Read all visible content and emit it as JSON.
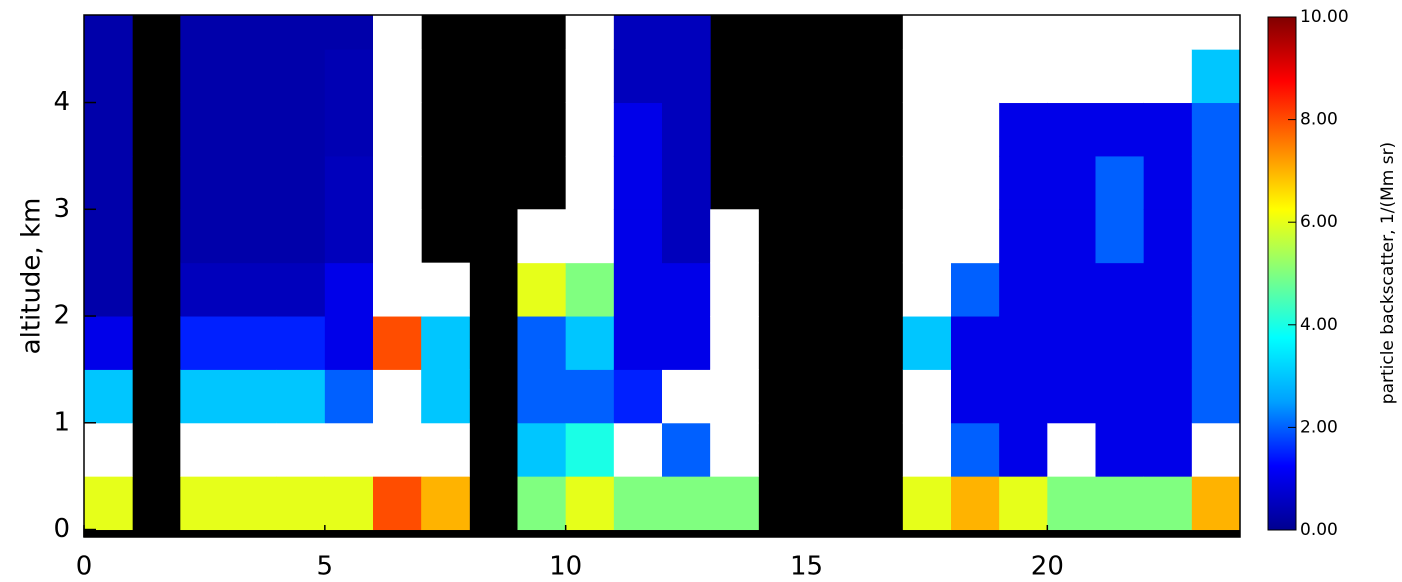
{
  "chart_data": {
    "type": "heatmap",
    "xlabel": null,
    "ylabel": "altitude, km",
    "colorbar_label": "particle backscatter, 1/(Mm sr)",
    "xlim": [
      0,
      24
    ],
    "xticks": [
      0,
      5,
      10,
      15,
      20
    ],
    "ylim": [
      -0.07,
      4.82
    ],
    "yticks": [
      0,
      1,
      2,
      3,
      4
    ],
    "x_bins": [
      0,
      1,
      2,
      3,
      4,
      5,
      6,
      7,
      8,
      9,
      10,
      11,
      12,
      13,
      14,
      15,
      16,
      17,
      18,
      19,
      20,
      21,
      22,
      23,
      24
    ],
    "y_bins": [
      0,
      0.5,
      1,
      1.5,
      2,
      2.5,
      3,
      3.5,
      4,
      4.5,
      4.82
    ],
    "clim": [
      0,
      10
    ],
    "cticks": [
      {
        "value": 0,
        "label": "0.00"
      },
      {
        "value": 2,
        "label": "2.00"
      },
      {
        "value": 4,
        "label": "4.00"
      },
      {
        "value": 6,
        "label": "6.00"
      },
      {
        "value": 8,
        "label": "8.00"
      },
      {
        "value": 10,
        "label": "10.00"
      }
    ],
    "colormap": [
      "#00008f",
      "#0000ff",
      "#00a0ff",
      "#00ffff",
      "#80ff80",
      "#ffff00",
      "#ff8000",
      "#ff0000",
      "#800000"
    ],
    "over_color": "#ffffff",
    "missing_color": "#000000",
    "values": [
      [
        6,
        11,
        3,
        1,
        0.3,
        0.3,
        0.3,
        0.3,
        0.3,
        0.3
      ],
      [
        null,
        null,
        null,
        null,
        null,
        null,
        null,
        null,
        null,
        null
      ],
      [
        6,
        11,
        3,
        1.5,
        0.5,
        0.3,
        0.3,
        0.3,
        0.3,
        0.3
      ],
      [
        6,
        11,
        3,
        1.5,
        0.5,
        0.3,
        0.3,
        0.3,
        0.3,
        0.3
      ],
      [
        6,
        11,
        3,
        1.5,
        0.5,
        0.3,
        0.3,
        0.3,
        0.3,
        0.3
      ],
      [
        6,
        11,
        2,
        1,
        1,
        0.5,
        0.5,
        0.4,
        0.4,
        0.3
      ],
      [
        8,
        11,
        11,
        8,
        11,
        11,
        11,
        11,
        11,
        11
      ],
      [
        7,
        11,
        3,
        3,
        11,
        null,
        null,
        null,
        null,
        null
      ],
      [
        null,
        null,
        null,
        null,
        null,
        null,
        null,
        null,
        null,
        null
      ],
      [
        5,
        3,
        2,
        2,
        6,
        11,
        null,
        null,
        null,
        null
      ],
      [
        6,
        4,
        2,
        3,
        5,
        11,
        11,
        11,
        11,
        11
      ],
      [
        5,
        11,
        1.5,
        1,
        1,
        1,
        1,
        1,
        0.5,
        0.5
      ],
      [
        5,
        2,
        11,
        1,
        1,
        0.5,
        0.5,
        0.5,
        0.5,
        0.5
      ],
      [
        5,
        11,
        11,
        11,
        11,
        11,
        null,
        null,
        null,
        null
      ],
      [
        null,
        null,
        null,
        null,
        null,
        null,
        null,
        null,
        null,
        null
      ],
      [
        null,
        null,
        null,
        null,
        null,
        null,
        null,
        null,
        null,
        null
      ],
      [
        null,
        null,
        null,
        null,
        null,
        null,
        null,
        null,
        null,
        null
      ],
      [
        6,
        11,
        11,
        3,
        11,
        11,
        11,
        11,
        11,
        11
      ],
      [
        7,
        2,
        1,
        1,
        2,
        11,
        11,
        11,
        11,
        11
      ],
      [
        6,
        1,
        1,
        1,
        1,
        1,
        1,
        1,
        11,
        11
      ],
      [
        5,
        11,
        1,
        1,
        1,
        1,
        1,
        1,
        11,
        11
      ],
      [
        5,
        1,
        1,
        1,
        1,
        2,
        2,
        1,
        11,
        11
      ],
      [
        5,
        1,
        1,
        1,
        1,
        1,
        1,
        1,
        11,
        11
      ],
      [
        7,
        11,
        2,
        2,
        2,
        2,
        2,
        2,
        3,
        11
      ]
    ]
  }
}
